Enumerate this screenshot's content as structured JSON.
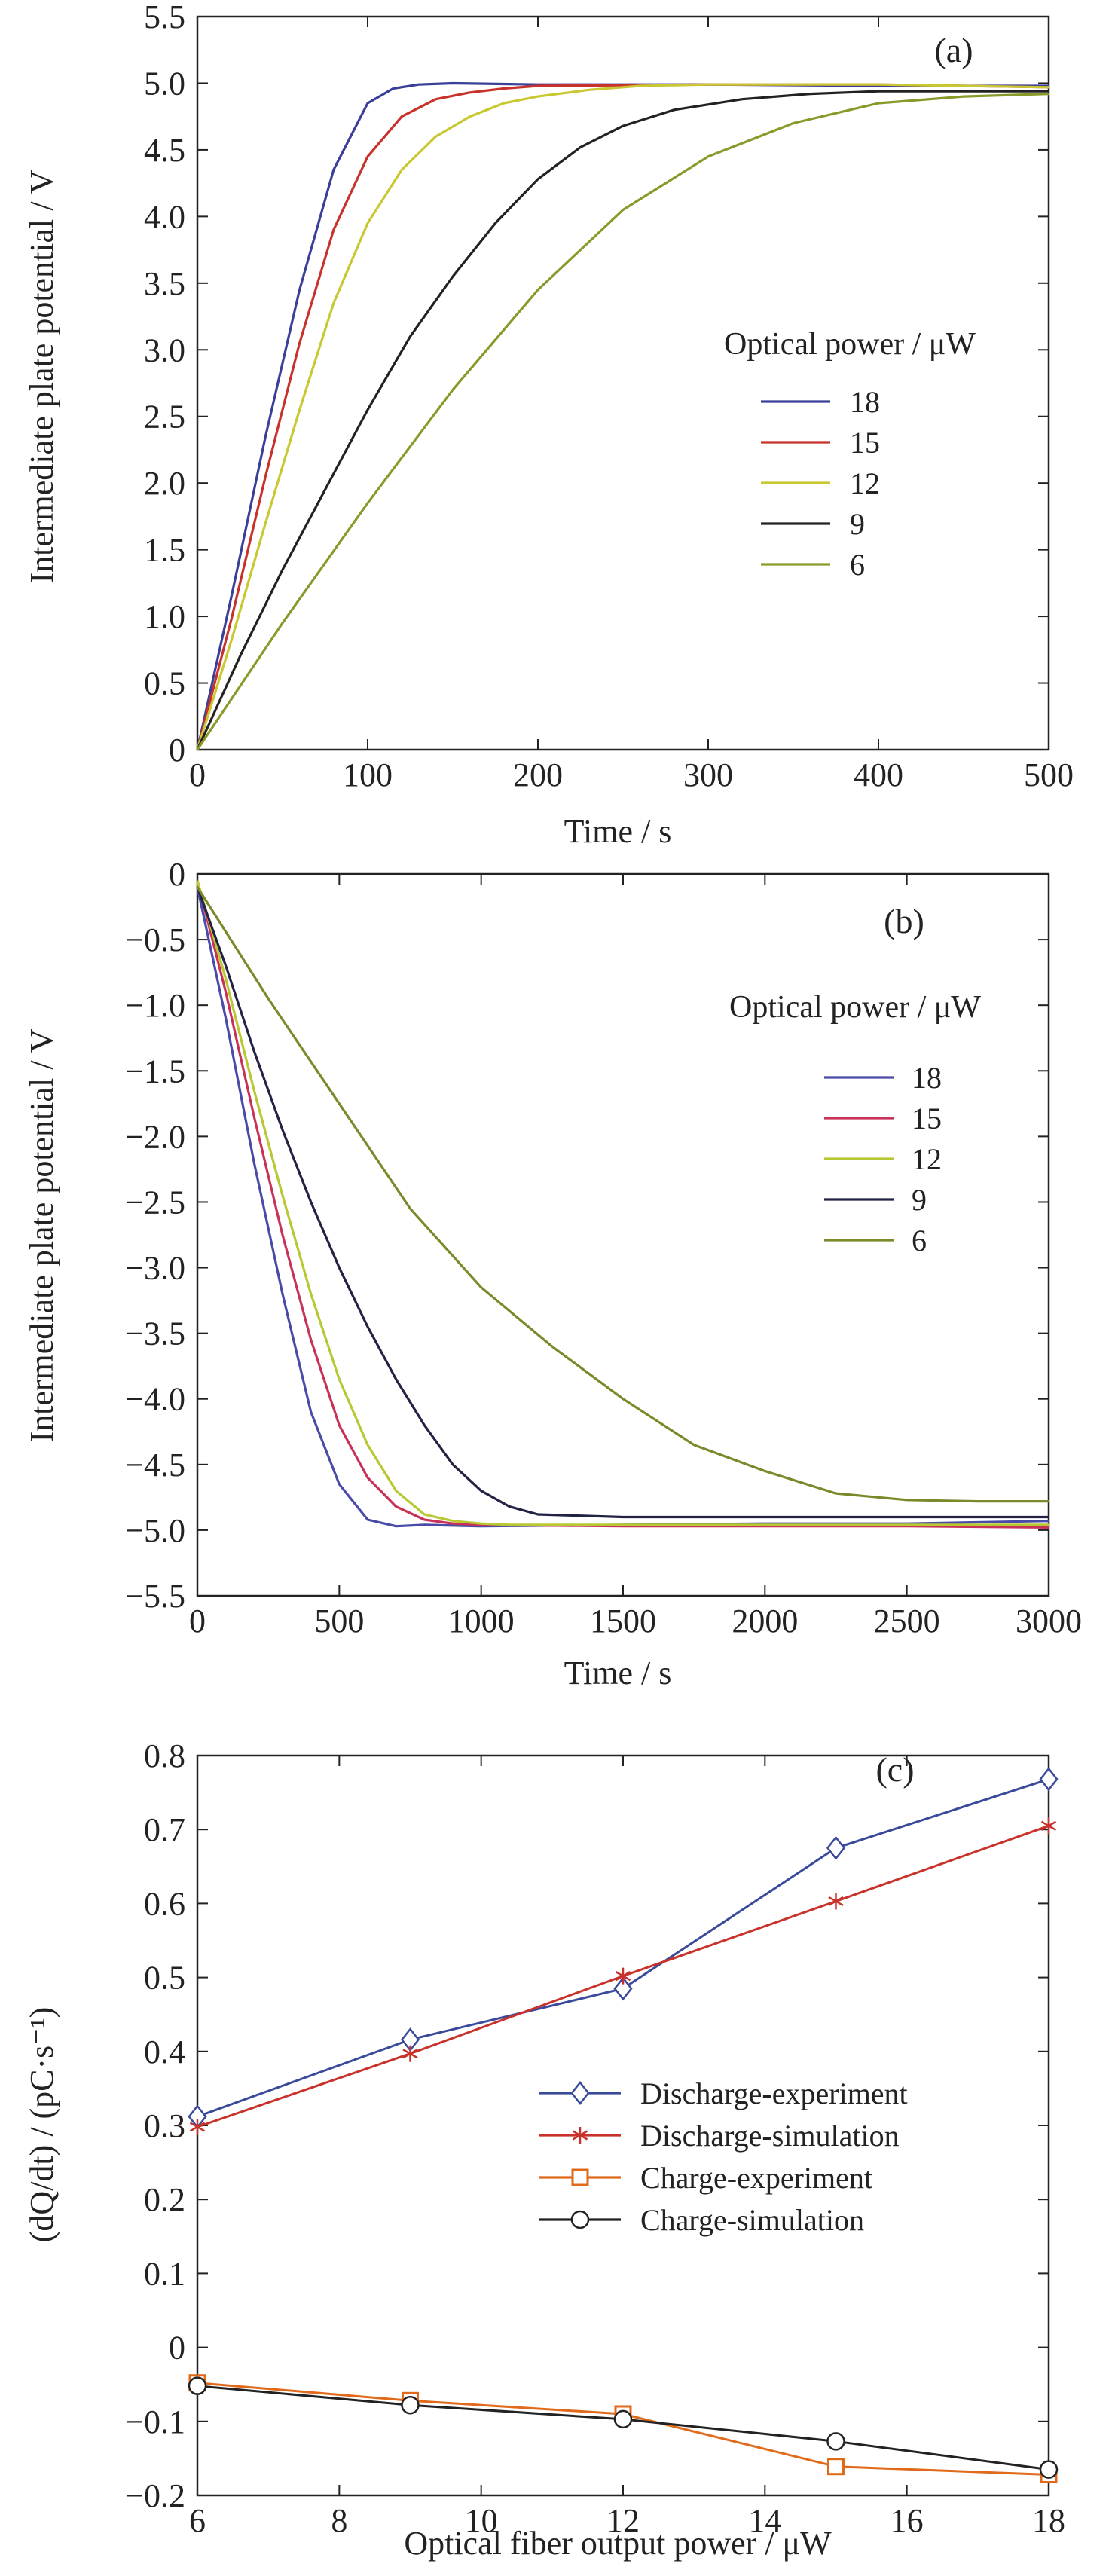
{
  "chart_data": [
    {
      "type": "line",
      "panel_label": "(a)",
      "xlabel": "Time / s",
      "ylabel": "Intermediate plate potential / V",
      "xlim": [
        0,
        500
      ],
      "ylim": [
        0,
        5.5
      ],
      "xticks": [
        "0",
        "100",
        "200",
        "300",
        "400",
        "500"
      ],
      "yticks": [
        "0",
        "0.5",
        "1.0",
        "1.5",
        "2.0",
        "2.5",
        "3.0",
        "3.5",
        "4.0",
        "4.5",
        "5.0",
        "5.5"
      ],
      "legend_title": "Optical power / μW",
      "series": [
        {
          "name": "18",
          "color": "#3a3f9a",
          "x": [
            0,
            20,
            40,
            60,
            80,
            100,
            115,
            130,
            150,
            200,
            300,
            400,
            500
          ],
          "y": [
            0,
            1.15,
            2.35,
            3.45,
            4.35,
            4.85,
            4.96,
            4.99,
            5.0,
            4.99,
            4.99,
            4.98,
            4.98
          ]
        },
        {
          "name": "15",
          "color": "#c8322b",
          "x": [
            0,
            20,
            40,
            60,
            80,
            100,
            120,
            140,
            160,
            180,
            200,
            300,
            400,
            500
          ],
          "y": [
            0,
            0.98,
            2.05,
            3.05,
            3.9,
            4.45,
            4.75,
            4.88,
            4.93,
            4.96,
            4.98,
            4.99,
            4.99,
            4.97
          ]
        },
        {
          "name": "12",
          "color": "#c8c832",
          "x": [
            0,
            20,
            40,
            60,
            80,
            100,
            120,
            140,
            160,
            180,
            200,
            230,
            260,
            300,
            400,
            500
          ],
          "y": [
            0,
            0.82,
            1.7,
            2.55,
            3.35,
            3.95,
            4.35,
            4.6,
            4.75,
            4.85,
            4.9,
            4.95,
            4.98,
            4.99,
            4.99,
            4.97
          ]
        },
        {
          "name": "9",
          "color": "#222222",
          "x": [
            0,
            25,
            50,
            75,
            100,
            125,
            150,
            175,
            200,
            225,
            250,
            280,
            320,
            360,
            400,
            450,
            500
          ],
          "y": [
            0,
            0.7,
            1.35,
            1.95,
            2.55,
            3.1,
            3.55,
            3.95,
            4.28,
            4.52,
            4.68,
            4.8,
            4.88,
            4.92,
            4.94,
            4.94,
            4.94
          ]
        },
        {
          "name": "6",
          "color": "#8a9a2a",
          "x": [
            0,
            50,
            100,
            150,
            200,
            250,
            300,
            350,
            400,
            450,
            500
          ],
          "y": [
            0,
            0.95,
            1.85,
            2.7,
            3.45,
            4.05,
            4.45,
            4.7,
            4.85,
            4.9,
            4.92
          ]
        }
      ]
    },
    {
      "type": "line",
      "panel_label": "(b)",
      "xlabel": "Time / s",
      "ylabel": "Intermediate plate potential / V",
      "xlim": [
        0,
        3000
      ],
      "ylim": [
        -5.5,
        0
      ],
      "xticks": [
        "0",
        "500",
        "1000",
        "1500",
        "2000",
        "2500",
        "3000"
      ],
      "yticks": [
        "0",
        "−0.5",
        "−1.0",
        "−1.5",
        "−2.0",
        "−2.5",
        "−3.0",
        "−3.5",
        "−4.0",
        "−4.5",
        "−5.0",
        "−5.5"
      ],
      "legend_title": "Optical power / μW",
      "series": [
        {
          "name": "18",
          "color": "#4a4aa8",
          "x": [
            0,
            100,
            200,
            300,
            400,
            500,
            600,
            700,
            800,
            1000,
            1500,
            2000,
            2500,
            3000
          ],
          "y": [
            -0.1,
            -1.1,
            -2.2,
            -3.2,
            -4.1,
            -4.65,
            -4.92,
            -4.97,
            -4.96,
            -4.97,
            -4.96,
            -4.95,
            -4.95,
            -4.93
          ]
        },
        {
          "name": "15",
          "color": "#c83258",
          "x": [
            0,
            100,
            200,
            300,
            400,
            500,
            600,
            700,
            800,
            900,
            1000,
            1500,
            2000,
            2500,
            3000
          ],
          "y": [
            -0.05,
            -0.9,
            -1.85,
            -2.75,
            -3.55,
            -4.2,
            -4.6,
            -4.82,
            -4.92,
            -4.95,
            -4.96,
            -4.97,
            -4.97,
            -4.97,
            -4.98
          ]
        },
        {
          "name": "12",
          "color": "#b8c832",
          "x": [
            0,
            100,
            200,
            300,
            400,
            500,
            600,
            700,
            800,
            900,
            1000,
            1100,
            1500,
            2000,
            2500,
            3000
          ],
          "y": [
            -0.05,
            -0.8,
            -1.65,
            -2.45,
            -3.2,
            -3.85,
            -4.35,
            -4.7,
            -4.88,
            -4.93,
            -4.95,
            -4.96,
            -4.96,
            -4.96,
            -4.96,
            -4.96
          ]
        },
        {
          "name": "9",
          "color": "#222244",
          "x": [
            0,
            100,
            200,
            300,
            400,
            500,
            600,
            700,
            800,
            900,
            1000,
            1100,
            1200,
            1350,
            1500,
            2000,
            2500,
            3000
          ],
          "y": [
            -0.1,
            -0.7,
            -1.35,
            -1.95,
            -2.5,
            -3.0,
            -3.45,
            -3.85,
            -4.2,
            -4.5,
            -4.7,
            -4.82,
            -4.88,
            -4.89,
            -4.9,
            -4.9,
            -4.9,
            -4.9
          ]
        },
        {
          "name": "6",
          "color": "#7a8a2a",
          "x": [
            0,
            250,
            500,
            750,
            1000,
            1250,
            1500,
            1750,
            2000,
            2250,
            2500,
            2750,
            3000
          ],
          "y": [
            -0.1,
            -0.95,
            -1.75,
            -2.55,
            -3.15,
            -3.6,
            -4.0,
            -4.35,
            -4.55,
            -4.72,
            -4.77,
            -4.78,
            -4.78
          ]
        }
      ]
    },
    {
      "type": "line",
      "panel_label": "(c)",
      "xlabel": "Optical fiber output power / μW",
      "ylabel": "(dQ/dt) / (pC·s⁻¹)",
      "xlim": [
        6,
        18
      ],
      "ylim": [
        -0.2,
        0.8
      ],
      "xticks": [
        "6",
        "8",
        "10",
        "12",
        "14",
        "16",
        "18"
      ],
      "yticks": [
        "−0.2",
        "−0.1",
        "0",
        "0.1",
        "0.2",
        "0.3",
        "0.4",
        "0.5",
        "0.6",
        "0.7",
        "0.8"
      ],
      "x": [
        6,
        9,
        12,
        15,
        18
      ],
      "series": [
        {
          "name": "Discharge-experiment",
          "color": "#3a4a9a",
          "marker": "diamond",
          "values": [
            0.312,
            0.416,
            0.485,
            0.675,
            0.768
          ]
        },
        {
          "name": "Discharge-simulation",
          "color": "#c8322b",
          "marker": "asterisk",
          "values": [
            0.298,
            0.397,
            0.502,
            0.603,
            0.705
          ]
        },
        {
          "name": "Charge-experiment",
          "color": "#e06a1a",
          "marker": "square",
          "values": [
            -0.048,
            -0.072,
            -0.09,
            -0.161,
            -0.172
          ]
        },
        {
          "name": "Charge-simulation",
          "color": "#222222",
          "marker": "circle",
          "values": [
            -0.052,
            -0.078,
            -0.097,
            -0.127,
            -0.165
          ]
        }
      ]
    }
  ]
}
